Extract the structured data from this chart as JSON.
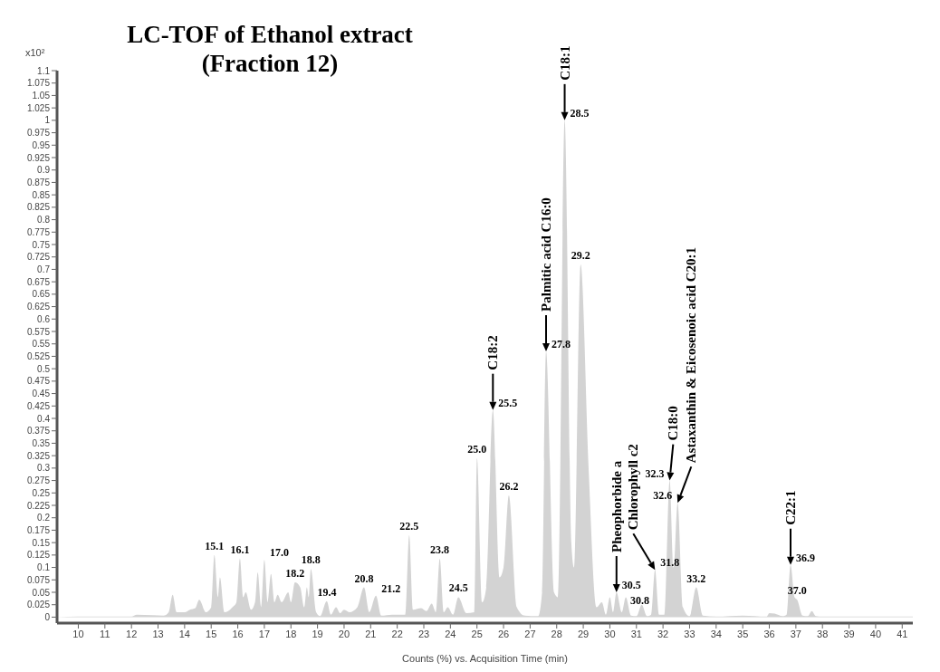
{
  "chart_data": {
    "type": "area",
    "title": "LC-TOF of Ethanol extract",
    "subtitle": "(Fraction 12)",
    "xlabel": "Counts (%) vs. Acquisition Time (min)",
    "ylabel": "x10²",
    "color": "#d3d3d3",
    "x": [
      9.2,
      10,
      12,
      12.2,
      12.8,
      13.2,
      13.4,
      13.55,
      13.7,
      14.0,
      14.2,
      14.4,
      14.55,
      14.8,
      15.0,
      15.12,
      15.25,
      15.33,
      15.5,
      15.8,
      15.95,
      16.08,
      16.2,
      16.3,
      16.5,
      16.65,
      16.75,
      16.88,
      17.0,
      17.12,
      17.25,
      17.38,
      17.5,
      17.65,
      17.9,
      18.0,
      18.15,
      18.35,
      18.5,
      18.6,
      18.67,
      18.75,
      18.95,
      19.1,
      19.35,
      19.5,
      19.7,
      19.85,
      20.0,
      20.2,
      20.5,
      20.75,
      20.95,
      21.2,
      21.4,
      21.8,
      22.3,
      22.45,
      22.6,
      22.9,
      23.1,
      23.3,
      23.45,
      23.6,
      23.75,
      23.9,
      24.1,
      24.3,
      24.6,
      24.9,
      25.0,
      25.2,
      25.35,
      25.6,
      25.85,
      26.0,
      26.2,
      26.5,
      26.8,
      27.3,
      27.45,
      27.6,
      27.9,
      28.05,
      28.3,
      28.55,
      28.65,
      28.9,
      29.2,
      29.5,
      29.7,
      29.85,
      30.0,
      30.12,
      30.25,
      30.45,
      30.6,
      30.8,
      31.0,
      31.2,
      31.4,
      31.55,
      31.7,
      31.85,
      32.05,
      32.25,
      32.4,
      32.55,
      32.75,
      33.0,
      33.25,
      33.5,
      34.0,
      35.0,
      35.9,
      36.0,
      36.2,
      36.5,
      36.65,
      36.8,
      36.95,
      37.05,
      37.25,
      37.45,
      37.6,
      37.75,
      38.0,
      41.4
    ],
    "values": [
      0,
      0.001,
      0.001,
      0.005,
      0.004,
      0.003,
      0.01,
      0.045,
      0.01,
      0.01,
      0.015,
      0.018,
      0.035,
      0.01,
      0.02,
      0.125,
      0.04,
      0.08,
      0.01,
      0.02,
      0.03,
      0.118,
      0.04,
      0.05,
      0.015,
      0.03,
      0.09,
      0.02,
      0.115,
      0.03,
      0.087,
      0.03,
      0.045,
      0.03,
      0.05,
      0.03,
      0.07,
      0.06,
      0.02,
      0.06,
      0.04,
      0.097,
      0.01,
      0.002,
      0.032,
      0.005,
      0.02,
      0.008,
      0.015,
      0.01,
      0.02,
      0.06,
      0.01,
      0.043,
      0.003,
      0.005,
      0.005,
      0.165,
      0.015,
      0.018,
      0.012,
      0.027,
      0.01,
      0.118,
      0.01,
      0.02,
      0.005,
      0.04,
      0.008,
      0.01,
      0.32,
      0.03,
      0.06,
      0.417,
      0.08,
      0.1,
      0.245,
      0.02,
      0.003,
      0.002,
      0.05,
      0.535,
      0.05,
      0.04,
      1.0,
      0.15,
      0.1,
      0.71,
      0.3,
      0.02,
      0.03,
      0.005,
      0.04,
      0.01,
      0.05,
      0.01,
      0.04,
      0.003,
      0.002,
      0.025,
      0.002,
      0.005,
      0.095,
      0.005,
      0.005,
      0.275,
      0.1,
      0.23,
      0.02,
      0.002,
      0.06,
      0.003,
      0.001,
      0.003,
      0.001,
      0.008,
      0.007,
      0.002,
      0.005,
      0.105,
      0.04,
      0.035,
      0.003,
      0.002,
      0.012,
      0.002,
      0.001,
      0.001
    ],
    "xlim": [
      9.2,
      41.4
    ],
    "xticks": [
      10,
      11,
      12,
      13,
      14,
      15,
      16,
      17,
      18,
      19,
      20,
      21,
      22,
      23,
      24,
      25,
      26,
      27,
      28,
      29,
      30,
      31,
      32,
      33,
      34,
      35,
      36,
      37,
      38,
      39,
      40,
      41
    ],
    "ylim": [
      -0.012,
      1.1
    ],
    "yticks": [
      0,
      0.025,
      0.05,
      0.075,
      0.1,
      0.125,
      0.15,
      0.175,
      0.2,
      0.225,
      0.25,
      0.275,
      0.3,
      0.325,
      0.35,
      0.375,
      0.4,
      0.425,
      0.45,
      0.475,
      0.5,
      0.525,
      0.55,
      0.575,
      0.6,
      0.625,
      0.65,
      0.675,
      0.7,
      0.725,
      0.75,
      0.775,
      0.8,
      0.825,
      0.85,
      0.875,
      0.9,
      0.925,
      0.95,
      0.975,
      1,
      1.025,
      1.05,
      1.075,
      1.1
    ],
    "annotations": [
      {
        "text": "15.1",
        "x": 15.12,
        "y": 0.125
      },
      {
        "text": "16.1",
        "x": 16.08,
        "y": 0.118
      },
      {
        "text": "17.0",
        "x": 17.0,
        "y": 0.115
      },
      {
        "text": "18.2",
        "x": 18.15,
        "y": 0.07
      },
      {
        "text": "18.8",
        "x": 18.75,
        "y": 0.097
      },
      {
        "text": "19.4",
        "x": 19.35,
        "y": 0.032
      },
      {
        "text": "20.8",
        "x": 20.75,
        "y": 0.06
      },
      {
        "text": "21.2",
        "x": 21.2,
        "y": 0.043
      },
      {
        "text": "22.5",
        "x": 22.45,
        "y": 0.165
      },
      {
        "text": "23.8",
        "x": 23.6,
        "y": 0.118
      },
      {
        "text": "24.5",
        "x": 24.3,
        "y": 0.04
      },
      {
        "text": "25.0",
        "x": 25.0,
        "y": 0.32
      },
      {
        "text": "25.5",
        "x": 25.6,
        "y": 0.417
      },
      {
        "text": "26.2",
        "x": 26.2,
        "y": 0.245
      },
      {
        "text": "27.8",
        "x": 27.6,
        "y": 0.535
      },
      {
        "text": "28.5",
        "x": 28.3,
        "y": 1.0
      },
      {
        "text": "29.2",
        "x": 28.9,
        "y": 0.71
      },
      {
        "text": "30.5",
        "x": 30.25,
        "y": 0.05
      },
      {
        "text": "30.8",
        "x": 30.6,
        "y": 0.04
      },
      {
        "text": "31.8",
        "x": 31.7,
        "y": 0.095
      },
      {
        "text": "32.3",
        "x": 32.25,
        "y": 0.275
      },
      {
        "text": "32.6",
        "x": 32.55,
        "y": 0.23
      },
      {
        "text": "33.2",
        "x": 33.25,
        "y": 0.06
      },
      {
        "text": "36.9",
        "x": 36.8,
        "y": 0.105
      },
      {
        "text": "37.0",
        "x": 37.05,
        "y": 0.035
      },
      {
        "text": "C18:2",
        "x": 25.6,
        "y": 0.417
      },
      {
        "text": "Palmitic acid C16:0",
        "x": 27.6,
        "y": 0.535
      },
      {
        "text": "C18:1",
        "x": 28.3,
        "y": 1.0
      },
      {
        "text": "Pheophorbide a",
        "x": 30.25,
        "y": 0.05
      },
      {
        "text": "Chlorophyll c2",
        "x": 31.7,
        "y": 0.095
      },
      {
        "text": "C18:0",
        "x": 32.25,
        "y": 0.275
      },
      {
        "text": "Astaxanthin & Eicosenoic acid C20:1",
        "x": 32.55,
        "y": 0.23
      },
      {
        "text": "C22:1",
        "x": 36.8,
        "y": 0.105
      }
    ]
  }
}
